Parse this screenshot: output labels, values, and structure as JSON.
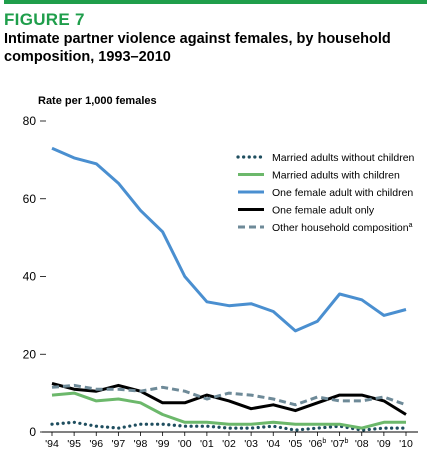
{
  "figure_label": "FIGURE 7",
  "title": "Intimate partner violence against females, by household composition, 1993–2010",
  "colors": {
    "accent": "#1f9e4b",
    "married_without": "#1f4e5f",
    "married_with": "#6cb86b",
    "one_female_with": "#4a8fd0",
    "one_female_only": "#000000",
    "other": "#6e8a98"
  },
  "chart_data": {
    "type": "line",
    "title": "Intimate partner violence against females, by household composition, 1993–2010",
    "ylabel": "Rate per 1,000 females",
    "xlabel": "",
    "ylim": [
      0,
      80
    ],
    "yticks": [
      0,
      20,
      40,
      60,
      80
    ],
    "categories": [
      "'94",
      "'95",
      "'96",
      "'97",
      "'98",
      "'99",
      "'00",
      "'01",
      "'02",
      "'03",
      "'04",
      "'05",
      "'06",
      "'07",
      "'08",
      "'09",
      "'10"
    ],
    "category_superscripts": [
      "",
      "",
      "",
      "",
      "",
      "",
      "",
      "",
      "",
      "",
      "",
      "",
      "b",
      "b",
      "",
      "",
      ""
    ],
    "grid": false,
    "legend_position": "right",
    "series": [
      {
        "name": "Married adults without children",
        "style": "dotted",
        "color_key": "married_without",
        "values": [
          2.0,
          2.5,
          1.5,
          1.0,
          2.0,
          2.0,
          1.5,
          1.5,
          1.0,
          1.0,
          1.5,
          0.5,
          1.0,
          1.5,
          0.5,
          1.0,
          1.0
        ]
      },
      {
        "name": "Married adults with children",
        "style": "solid",
        "color_key": "married_with",
        "values": [
          9.5,
          10.0,
          8.0,
          8.5,
          7.5,
          4.5,
          2.5,
          2.5,
          2.0,
          2.0,
          2.5,
          2.0,
          2.0,
          2.0,
          1.0,
          2.5,
          2.5
        ]
      },
      {
        "name": "One female adult with children",
        "style": "solid",
        "color_key": "one_female_with",
        "values": [
          73.0,
          70.5,
          69.0,
          64.0,
          57.0,
          51.5,
          40.0,
          33.5,
          32.5,
          33.0,
          31.0,
          26.0,
          28.5,
          35.5,
          34.0,
          30.0,
          31.5
        ]
      },
      {
        "name": "One female adult only",
        "style": "solid",
        "color_key": "one_female_only",
        "values": [
          12.5,
          11.0,
          10.5,
          12.0,
          10.5,
          7.5,
          7.5,
          9.5,
          8.0,
          6.0,
          7.0,
          5.5,
          7.5,
          9.5,
          9.5,
          8.0,
          4.5
        ]
      },
      {
        "name": "Other household composition",
        "name_superscript": "a",
        "style": "dashed",
        "color_key": "other",
        "values": [
          11.5,
          12.0,
          11.0,
          11.0,
          10.5,
          11.5,
          10.5,
          8.5,
          10.0,
          9.5,
          8.5,
          7.0,
          9.0,
          8.0,
          8.0,
          9.0,
          7.0
        ]
      }
    ]
  }
}
